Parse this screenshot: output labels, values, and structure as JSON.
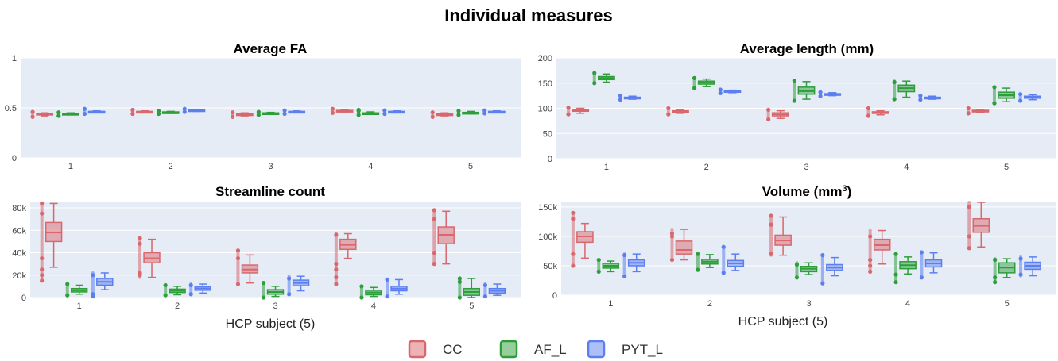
{
  "figure_title": "Individual measures",
  "legend": [
    {
      "name": "CC",
      "color": "#d9676c"
    },
    {
      "name": "AF_L",
      "color": "#2e9e3a"
    },
    {
      "name": "PYT_L",
      "color": "#5b7ff0"
    }
  ],
  "chart_data": [
    {
      "type": "box",
      "title": "Average FA",
      "title_sup": "",
      "xlabel": "",
      "categories": [
        "1",
        "2",
        "3",
        "4",
        "5"
      ],
      "ylim": [
        0,
        1
      ],
      "yticks": [
        0,
        0.5,
        1
      ],
      "ytick_labels": [
        "0",
        "0.5",
        "1"
      ],
      "grid": true,
      "series": [
        {
          "name": "CC",
          "boxes": [
            {
              "min": 0.42,
              "q1": 0.43,
              "median": 0.44,
              "q3": 0.445,
              "max": 0.45,
              "outliers": [
                0.41,
                0.46
              ]
            },
            {
              "min": 0.45,
              "q1": 0.455,
              "median": 0.46,
              "q3": 0.465,
              "max": 0.47,
              "outliers": [
                0.44,
                0.48
              ]
            },
            {
              "min": 0.42,
              "q1": 0.43,
              "median": 0.435,
              "q3": 0.44,
              "max": 0.45,
              "outliers": [
                0.41,
                0.455
              ]
            },
            {
              "min": 0.46,
              "q1": 0.465,
              "median": 0.47,
              "q3": 0.475,
              "max": 0.48,
              "outliers": [
                0.45,
                0.49
              ]
            },
            {
              "min": 0.42,
              "q1": 0.43,
              "median": 0.435,
              "q3": 0.44,
              "max": 0.45,
              "outliers": [
                0.41,
                0.455
              ]
            }
          ]
        },
        {
          "name": "AF_L",
          "boxes": [
            {
              "min": 0.43,
              "q1": 0.435,
              "median": 0.44,
              "q3": 0.445,
              "max": 0.45,
              "outliers": [
                0.42,
                0.455
              ]
            },
            {
              "min": 0.445,
              "q1": 0.45,
              "median": 0.455,
              "q3": 0.46,
              "max": 0.465,
              "outliers": [
                0.44,
                0.47
              ]
            },
            {
              "min": 0.435,
              "q1": 0.44,
              "median": 0.445,
              "q3": 0.45,
              "max": 0.455,
              "outliers": [
                0.43,
                0.46
              ]
            },
            {
              "min": 0.435,
              "q1": 0.44,
              "median": 0.445,
              "q3": 0.45,
              "max": 0.46,
              "outliers": [
                0.43,
                0.47,
                0.48
              ]
            },
            {
              "min": 0.44,
              "q1": 0.445,
              "median": 0.45,
              "q3": 0.455,
              "max": 0.465,
              "outliers": [
                0.43,
                0.47
              ]
            }
          ]
        },
        {
          "name": "PYT_L",
          "boxes": [
            {
              "min": 0.45,
              "q1": 0.455,
              "median": 0.46,
              "q3": 0.465,
              "max": 0.47,
              "outliers": [
                0.44,
                0.49
              ]
            },
            {
              "min": 0.465,
              "q1": 0.47,
              "median": 0.475,
              "q3": 0.48,
              "max": 0.485,
              "outliers": [
                0.46,
                0.49
              ]
            },
            {
              "min": 0.45,
              "q1": 0.455,
              "median": 0.46,
              "q3": 0.465,
              "max": 0.47,
              "outliers": [
                0.44,
                0.475
              ]
            },
            {
              "min": 0.45,
              "q1": 0.455,
              "median": 0.46,
              "q3": 0.465,
              "max": 0.47,
              "outliers": [
                0.44,
                0.475
              ]
            },
            {
              "min": 0.45,
              "q1": 0.455,
              "median": 0.46,
              "q3": 0.465,
              "max": 0.47,
              "outliers": [
                0.445,
                0.475
              ]
            }
          ]
        }
      ]
    },
    {
      "type": "box",
      "title": "Average length (mm)",
      "title_sup": "",
      "xlabel": "",
      "categories": [
        "1",
        "2",
        "3",
        "4",
        "5"
      ],
      "ylim": [
        0,
        200
      ],
      "yticks": [
        0,
        50,
        100,
        150,
        200
      ],
      "ytick_labels": [
        "0",
        "50",
        "100",
        "150",
        "200"
      ],
      "grid": true,
      "series": [
        {
          "name": "CC",
          "boxes": [
            {
              "min": 90,
              "q1": 94,
              "median": 96,
              "q3": 98,
              "max": 100,
              "outliers": [
                88,
                101
              ]
            },
            {
              "min": 90,
              "q1": 92,
              "median": 93,
              "q3": 95,
              "max": 97,
              "outliers": [
                88,
                100
              ]
            },
            {
              "min": 80,
              "q1": 85,
              "median": 88,
              "q3": 91,
              "max": 95,
              "outliers": [
                78,
                97
              ]
            },
            {
              "min": 87,
              "q1": 90,
              "median": 92,
              "q3": 93,
              "max": 95,
              "outliers": [
                85,
                100
              ]
            },
            {
              "min": 92,
              "q1": 94,
              "median": 95,
              "q3": 96,
              "max": 98,
              "outliers": [
                90,
                100
              ]
            }
          ]
        },
        {
          "name": "AF_L",
          "boxes": [
            {
              "min": 152,
              "q1": 157,
              "median": 160,
              "q3": 163,
              "max": 168,
              "outliers": [
                150,
                170
              ]
            },
            {
              "min": 143,
              "q1": 148,
              "median": 151,
              "q3": 154,
              "max": 158,
              "outliers": [
                140,
                160
              ]
            },
            {
              "min": 118,
              "q1": 128,
              "median": 134,
              "q3": 142,
              "max": 153,
              "outliers": [
                115,
                155
              ]
            },
            {
              "min": 122,
              "q1": 133,
              "median": 140,
              "q3": 146,
              "max": 154,
              "outliers": [
                118,
                152
              ]
            },
            {
              "min": 113,
              "q1": 120,
              "median": 126,
              "q3": 132,
              "max": 140,
              "outliers": [
                110,
                142
              ]
            }
          ]
        },
        {
          "name": "PYT_L",
          "boxes": [
            {
              "min": 118,
              "q1": 120,
              "median": 121,
              "q3": 122,
              "max": 124,
              "outliers": [
                117,
                125
              ]
            },
            {
              "min": 131,
              "q1": 133,
              "median": 134,
              "q3": 135,
              "max": 136,
              "outliers": [
                130,
                137
              ]
            },
            {
              "min": 125,
              "q1": 127,
              "median": 128,
              "q3": 129,
              "max": 131,
              "outliers": [
                124,
                132
              ]
            },
            {
              "min": 118,
              "q1": 120,
              "median": 121,
              "q3": 122,
              "max": 124,
              "outliers": [
                117,
                125
              ]
            },
            {
              "min": 117,
              "q1": 120,
              "median": 122,
              "q3": 124,
              "max": 127,
              "outliers": [
                115,
                128
              ]
            }
          ]
        }
      ]
    },
    {
      "type": "box",
      "title": "Streamline count",
      "title_sup": "",
      "xlabel": "HCP subject (5)",
      "categories": [
        "1",
        "2",
        "3",
        "4",
        "5"
      ],
      "ylim": [
        0,
        85000
      ],
      "yticks": [
        0,
        20000,
        40000,
        60000,
        80000
      ],
      "ytick_labels": [
        "0",
        "20k",
        "40k",
        "60k",
        "80k"
      ],
      "grid": true,
      "series": [
        {
          "name": "CC",
          "boxes": [
            {
              "min": 27000,
              "q1": 50000,
              "median": 58000,
              "q3": 67000,
              "max": 84000,
              "outliers": [
                15000,
                20000,
                25000,
                35000,
                75000,
                84000
              ]
            },
            {
              "min": 18000,
              "q1": 31000,
              "median": 35000,
              "q3": 40000,
              "max": 52000,
              "outliers": [
                20000,
                22000,
                48000,
                53000
              ]
            },
            {
              "min": 13000,
              "q1": 22000,
              "median": 25000,
              "q3": 29000,
              "max": 38000,
              "outliers": [
                12000,
                35000,
                42000
              ]
            },
            {
              "min": 35000,
              "q1": 43000,
              "median": 47000,
              "q3": 52000,
              "max": 57000,
              "outliers": [
                12000,
                18000,
                25000,
                30000,
                56000
              ]
            },
            {
              "min": 30000,
              "q1": 48000,
              "median": 56000,
              "q3": 63000,
              "max": 77000,
              "outliers": [
                30000,
                40000,
                70000,
                78000
              ]
            }
          ]
        },
        {
          "name": "AF_L",
          "boxes": [
            {
              "min": 3000,
              "q1": 5000,
              "median": 6500,
              "q3": 8000,
              "max": 11000,
              "outliers": [
                2000,
                12000
              ]
            },
            {
              "min": 2500,
              "q1": 4500,
              "median": 6000,
              "q3": 7500,
              "max": 10000,
              "outliers": [
                2000,
                11000
              ]
            },
            {
              "min": 1000,
              "q1": 3000,
              "median": 5000,
              "q3": 7000,
              "max": 10000,
              "outliers": [
                0,
                13000
              ]
            },
            {
              "min": 1000,
              "q1": 2500,
              "median": 4500,
              "q3": 6500,
              "max": 9000,
              "outliers": [
                0,
                10000
              ]
            },
            {
              "min": 0,
              "q1": 2000,
              "median": 5000,
              "q3": 8000,
              "max": 17000,
              "outliers": [
                0,
                14000,
                17000
              ]
            }
          ]
        },
        {
          "name": "PYT_L",
          "boxes": [
            {
              "min": 7000,
              "q1": 11000,
              "median": 14000,
              "q3": 17000,
              "max": 22000,
              "outliers": [
                1000,
                3000,
                20000
              ]
            },
            {
              "min": 4000,
              "q1": 6500,
              "median": 8000,
              "q3": 9500,
              "max": 12000,
              "outliers": [
                3000,
                11000
              ]
            },
            {
              "min": 6000,
              "q1": 10500,
              "median": 13000,
              "q3": 15500,
              "max": 19000,
              "outliers": [
                3000,
                17000
              ]
            },
            {
              "min": 3000,
              "q1": 6000,
              "median": 8000,
              "q3": 10000,
              "max": 16000,
              "outliers": [
                1000,
                16000
              ]
            },
            {
              "min": 2000,
              "q1": 4000,
              "median": 6000,
              "q3": 8000,
              "max": 12000,
              "outliers": [
                1000,
                11000
              ]
            }
          ]
        }
      ]
    },
    {
      "type": "box",
      "title": "Volume (mm",
      "title_sup": "3",
      "title_suffix": ")",
      "xlabel": "HCP subject (5)",
      "categories": [
        "1",
        "2",
        "3",
        "4",
        "5"
      ],
      "ylim": [
        0,
        158000
      ],
      "yticks": [
        0,
        50000,
        100000,
        150000
      ],
      "ytick_labels": [
        "0",
        "50k",
        "100k",
        "150k"
      ],
      "grid": true,
      "series": [
        {
          "name": "CC",
          "boxes": [
            {
              "min": 63000,
              "q1": 90000,
              "median": 100000,
              "q3": 108000,
              "max": 122000,
              "outliers": [
                50000,
                70000,
                130000,
                140000
              ]
            },
            {
              "min": 60000,
              "q1": 70000,
              "median": 77000,
              "q3": 92000,
              "max": 112000,
              "outliers": [
                60000,
                100000,
                105000
              ]
            },
            {
              "min": 68000,
              "q1": 85000,
              "median": 93000,
              "q3": 102000,
              "max": 133000,
              "outliers": [
                70000,
                120000,
                135000
              ]
            },
            {
              "min": 53000,
              "q1": 77000,
              "median": 85000,
              "q3": 95000,
              "max": 110000,
              "outliers": [
                40000,
                50000,
                60000,
                100000
              ]
            },
            {
              "min": 82000,
              "q1": 107000,
              "median": 118000,
              "q3": 130000,
              "max": 158000,
              "outliers": [
                80000,
                100000,
                150000
              ]
            }
          ]
        },
        {
          "name": "AF_L",
          "boxes": [
            {
              "min": 40000,
              "q1": 46000,
              "median": 50000,
              "q3": 54000,
              "max": 58000,
              "outliers": [
                40000,
                60000
              ]
            },
            {
              "min": 47000,
              "q1": 53000,
              "median": 57000,
              "q3": 61000,
              "max": 69000,
              "outliers": [
                43000,
                70000
              ]
            },
            {
              "min": 35000,
              "q1": 40000,
              "median": 45000,
              "q3": 49000,
              "max": 55000,
              "outliers": [
                30000,
                52000
              ]
            },
            {
              "min": 36000,
              "q1": 45000,
              "median": 51000,
              "q3": 57000,
              "max": 65000,
              "outliers": [
                22000,
                35000,
                70000
              ]
            },
            {
              "min": 30000,
              "q1": 38000,
              "median": 47000,
              "q3": 55000,
              "max": 62000,
              "outliers": [
                22000,
                30000,
                60000
              ]
            }
          ]
        },
        {
          "name": "PYT_L",
          "boxes": [
            {
              "min": 40000,
              "q1": 50000,
              "median": 55000,
              "q3": 60000,
              "max": 70000,
              "outliers": [
                32000,
                68000
              ]
            },
            {
              "min": 42000,
              "q1": 49000,
              "median": 54000,
              "q3": 59000,
              "max": 70000,
              "outliers": [
                38000,
                82000
              ]
            },
            {
              "min": 33000,
              "q1": 42000,
              "median": 47000,
              "q3": 52000,
              "max": 64000,
              "outliers": [
                20000,
                68000
              ]
            },
            {
              "min": 38000,
              "q1": 48000,
              "median": 54000,
              "q3": 60000,
              "max": 72000,
              "outliers": [
                30000,
                73000
              ]
            },
            {
              "min": 33000,
              "q1": 44000,
              "median": 50000,
              "q3": 56000,
              "max": 65000,
              "outliers": [
                35000,
                62000
              ]
            }
          ]
        }
      ]
    }
  ]
}
